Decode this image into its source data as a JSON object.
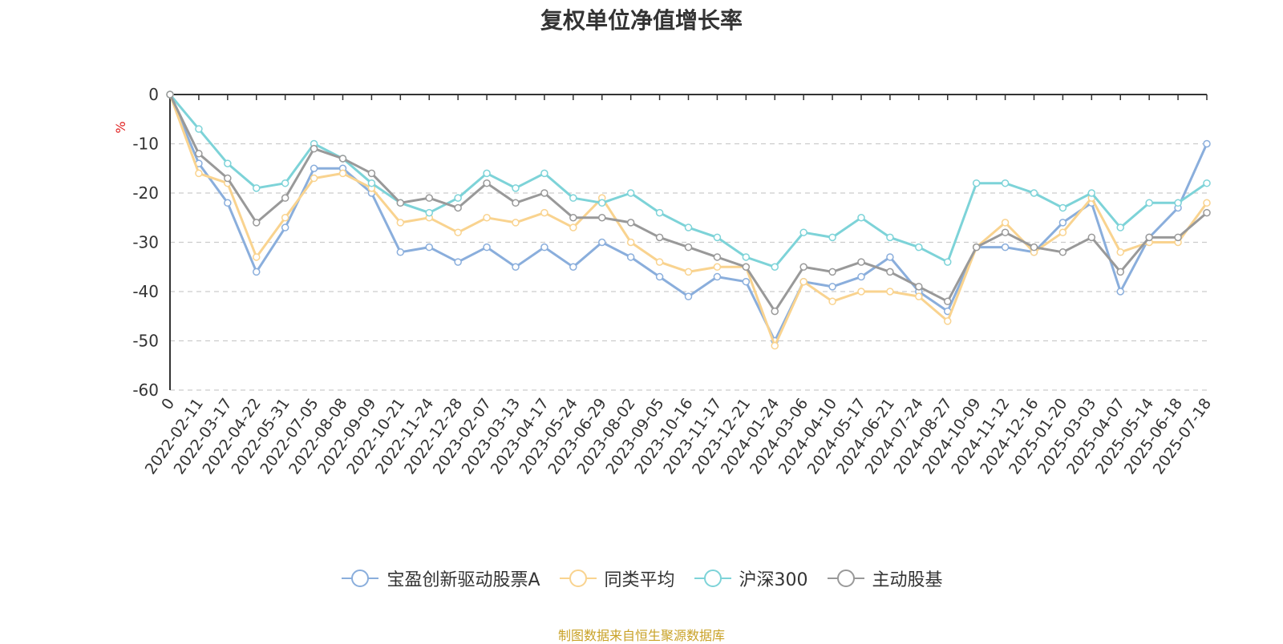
{
  "chart_data": {
    "type": "line",
    "title": "复权单位净值增长率",
    "ylabel": "%",
    "xlabel": "",
    "ylim": [
      -60,
      0
    ],
    "yticks": [
      0,
      -10,
      -20,
      -30,
      -40,
      -50,
      -60
    ],
    "xticks": [
      "0",
      "2022-02-11",
      "2022-03-17",
      "2022-04-22",
      "2022-05-31",
      "2022-07-05",
      "2022-08-08",
      "2022-09-09",
      "2022-10-21",
      "2022-11-24",
      "2022-12-28",
      "2023-02-07",
      "2023-03-13",
      "2023-04-17",
      "2023-05-24",
      "2023-06-29",
      "2023-08-02",
      "2023-09-05",
      "2023-10-16",
      "2023-11-17",
      "2023-12-21",
      "2024-01-24",
      "2024-03-06",
      "2024-04-10",
      "2024-05-17",
      "2024-06-21",
      "2024-07-24",
      "2024-08-27",
      "2024-10-09",
      "2024-11-12",
      "2024-12-16",
      "2025-01-20",
      "2025-03-03",
      "2025-04-07",
      "2025-05-14",
      "2025-06-18",
      "2025-07-18"
    ],
    "grid": true,
    "legend_position": "bottom",
    "x": [
      "0",
      "2022-02-11",
      "2022-03-17",
      "2022-04-22",
      "2022-05-31",
      "2022-07-05",
      "2022-08-08",
      "2022-09-09",
      "2022-10-21",
      "2022-11-24",
      "2022-12-28",
      "2023-02-07",
      "2023-03-13",
      "2023-04-17",
      "2023-05-24",
      "2023-06-29",
      "2023-08-02",
      "2023-09-05",
      "2023-10-16",
      "2023-11-17",
      "2023-12-21",
      "2024-01-24",
      "2024-03-06",
      "2024-04-10",
      "2024-05-17",
      "2024-06-21",
      "2024-07-24",
      "2024-08-27",
      "2024-10-09",
      "2024-11-12",
      "2024-12-16",
      "2025-01-20",
      "2025-03-03",
      "2025-04-07",
      "2025-05-14",
      "2025-06-18",
      "2025-07-18"
    ],
    "series": [
      {
        "name": "宝盈创新驱动股票A",
        "color": "#8aaedc",
        "values": [
          0,
          -14,
          -22,
          -36,
          -27,
          -15,
          -15,
          -20,
          -32,
          -31,
          -34,
          -31,
          -35,
          -31,
          -35,
          -30,
          -33,
          -37,
          -41,
          -37,
          -38,
          -50,
          -38,
          -39,
          -37,
          -33,
          -40,
          -44,
          -31,
          -31,
          -32,
          -26,
          -22,
          -40,
          -29,
          -23,
          -10
        ]
      },
      {
        "name": "同类平均",
        "color": "#f9d38f",
        "values": [
          0,
          -16,
          -18,
          -33,
          -25,
          -17,
          -16,
          -19,
          -26,
          -25,
          -28,
          -25,
          -26,
          -24,
          -27,
          -21,
          -30,
          -34,
          -36,
          -35,
          -35,
          -51,
          -38,
          -42,
          -40,
          -40,
          -41,
          -46,
          -31,
          -26,
          -32,
          -28,
          -21,
          -32,
          -30,
          -30,
          -22
        ]
      },
      {
        "name": "沪深300",
        "color": "#7dd3d8",
        "values": [
          0,
          -7,
          -14,
          -19,
          -18,
          -10,
          -13,
          -18,
          -22,
          -24,
          -21,
          -16,
          -19,
          -16,
          -21,
          -22,
          -20,
          -24,
          -27,
          -29,
          -33,
          -35,
          -28,
          -29,
          -25,
          -29,
          -31,
          -34,
          -18,
          -18,
          -20,
          -23,
          -20,
          -27,
          -22,
          -22,
          -18
        ]
      },
      {
        "name": "主动股基",
        "color": "#999999",
        "values": [
          0,
          -12,
          -17,
          -26,
          -21,
          -11,
          -13,
          -16,
          -22,
          -21,
          -23,
          -18,
          -22,
          -20,
          -25,
          -25,
          -26,
          -29,
          -31,
          -33,
          -35,
          -44,
          -35,
          -36,
          -34,
          -36,
          -39,
          -42,
          -31,
          -28,
          -31,
          -32,
          -29,
          -36,
          -29,
          -29,
          -24
        ]
      }
    ]
  },
  "legend": {
    "items": [
      {
        "label": "宝盈创新驱动股票A",
        "color": "#8aaedc"
      },
      {
        "label": "同类平均",
        "color": "#f9d38f"
      },
      {
        "label": "沪深300",
        "color": "#7dd3d8"
      },
      {
        "label": "主动股基",
        "color": "#999999"
      }
    ]
  },
  "source_note": "制图数据来自恒生聚源数据库"
}
